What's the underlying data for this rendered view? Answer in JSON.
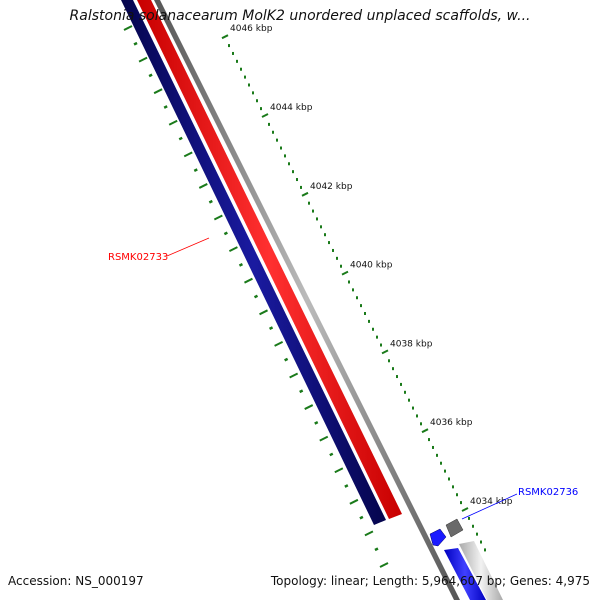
{
  "title": "Ralstonia solanacearum MolK2 unordered unplaced scaffolds, w...",
  "footer": {
    "accession": "Accession: NS_000197",
    "stats": "Topology: linear; Length: 5,964,607 bp; Genes: 4,975"
  },
  "scale_labels": [
    {
      "text": "4046 kbp",
      "kbp": 4046
    },
    {
      "text": "4044 kbp",
      "kbp": 4044
    },
    {
      "text": "4042 kbp",
      "kbp": 4042
    },
    {
      "text": "4040 kbp",
      "kbp": 4040
    },
    {
      "text": "4038 kbp",
      "kbp": 4038
    },
    {
      "text": "4036 kbp",
      "kbp": 4036
    },
    {
      "text": "4034 kbp",
      "kbp": 4034
    }
  ],
  "genes": [
    {
      "label": "RSMK02733",
      "color": "#ff0000"
    },
    {
      "label": "RSMK02736",
      "color": "#0000ff"
    }
  ],
  "colors": {
    "forward_gene": "#ff0000",
    "reverse_gene": "#0a0a80",
    "backbone": "#888888",
    "ticks": "#1a7a1a",
    "next_blue": "#1a1aff"
  }
}
